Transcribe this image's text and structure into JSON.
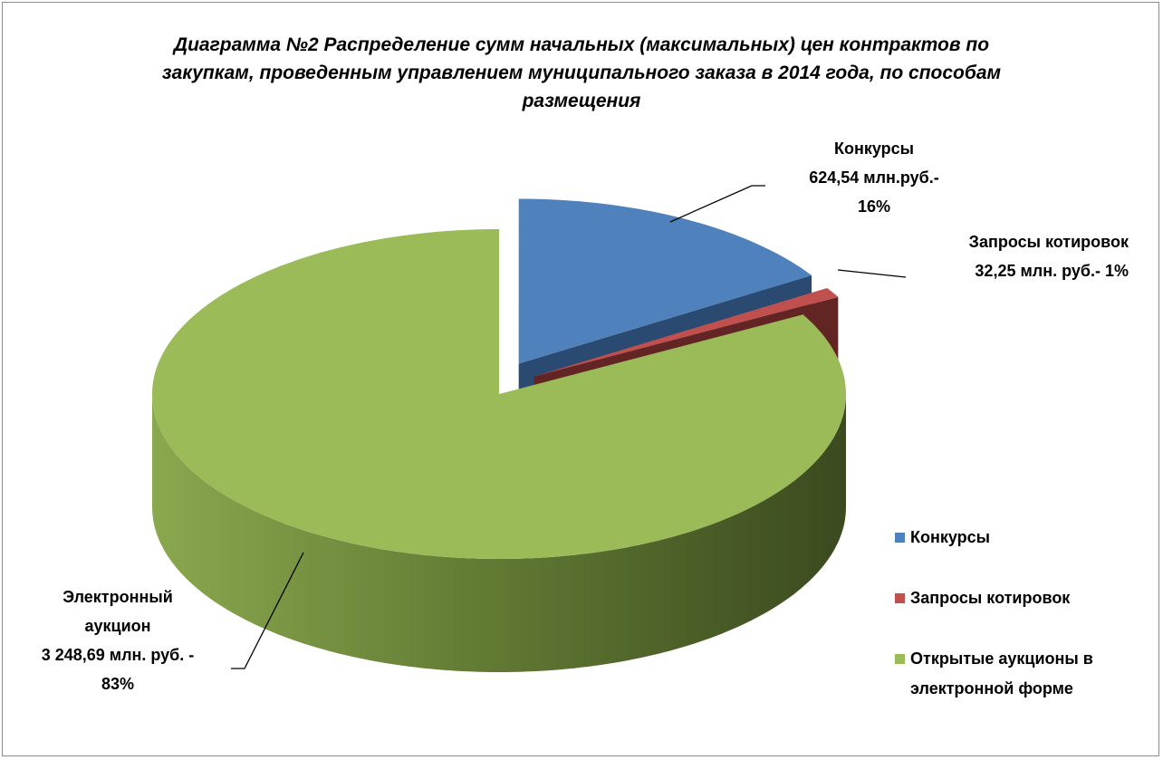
{
  "chart_data": {
    "type": "pie",
    "title": "Диаграмма №2 Распределение сумм начальных (максимальных) цен контрактов по закупкам, проведенным управлением муниципального заказа в 2014 года, по способам размещения",
    "categories": [
      "Конкурсы",
      "Запросы котировок",
      "Открытые аукционы в электронной форме"
    ],
    "values": [
      16,
      1,
      83
    ],
    "value_labels": [
      [
        "Конкурсы",
        "624,54 млн.руб.-",
        "16%"
      ],
      [
        "Запросы котировок",
        "32,25 млн. руб.- 1%"
      ],
      [
        "Электронный",
        "аукцион",
        "3 248,69 млн. руб. -",
        "83%"
      ]
    ],
    "colors": [
      "#4f81bd",
      "#c0504d",
      "#9bbb59"
    ],
    "legend": "right"
  }
}
